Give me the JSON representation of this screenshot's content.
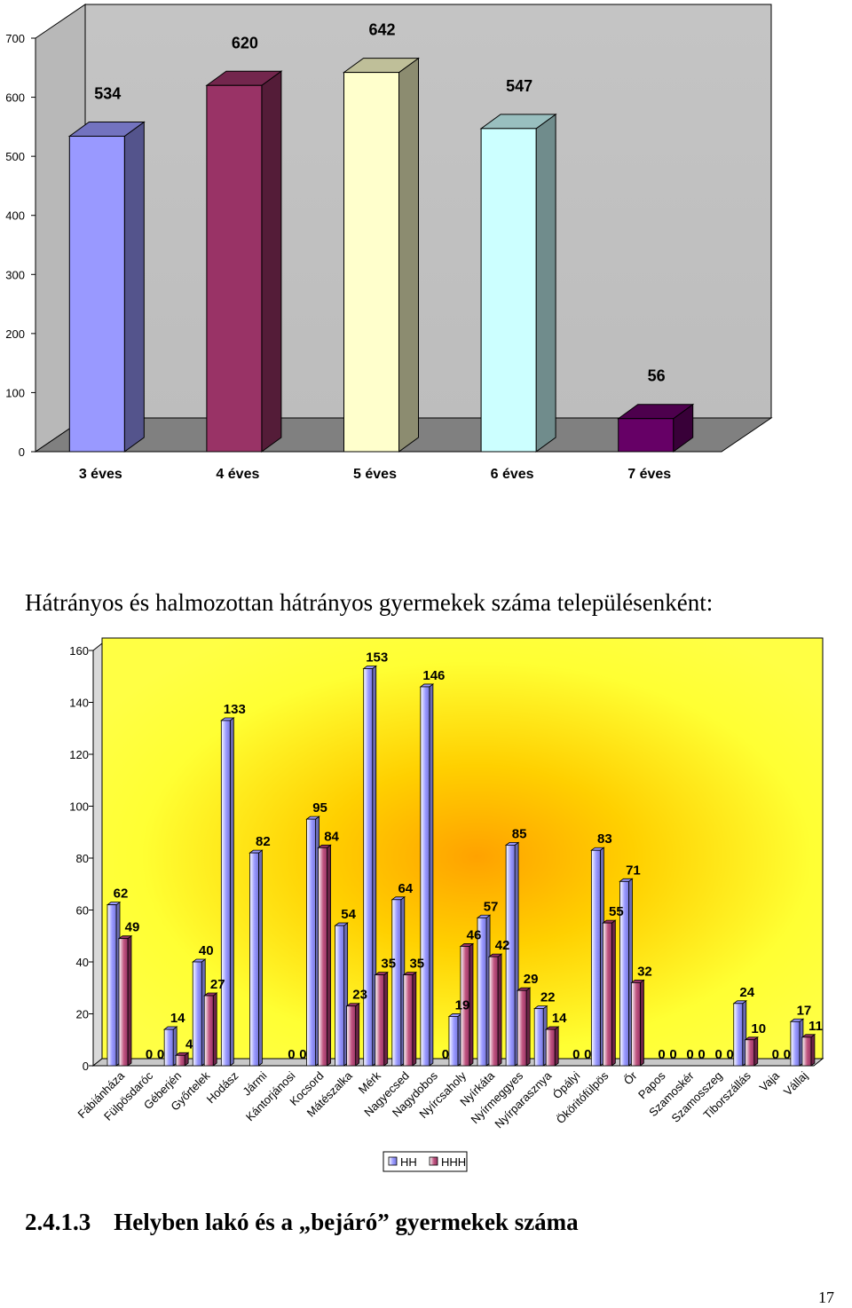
{
  "chart_data": [
    {
      "type": "bar",
      "categories": [
        "3 éves",
        "4 éves",
        "5 éves",
        "6 éves",
        "7 éves"
      ],
      "values": [
        534,
        620,
        642,
        547,
        56
      ],
      "colors": [
        "#9999ff",
        "#993366",
        "#ffffcc",
        "#ccffff",
        "#660066"
      ],
      "title": "",
      "ylim": [
        0,
        700
      ],
      "yticks": [
        "0",
        "100",
        "200",
        "300",
        "400",
        "500",
        "600",
        "700"
      ],
      "grid": false,
      "style": "3d"
    },
    {
      "type": "bar",
      "title": "Hátrányos és halmozottan hátrányos gyermekek száma településenként:",
      "categories": [
        "Fábiánháza",
        "Fülpösdaróc",
        "Géberjén",
        "Győrtelek",
        "Hodász",
        "Jármi",
        "Kántorjánosi",
        "Kocsord",
        "Mátészalka",
        "Mérk",
        "Nagyecsed",
        "Nagydobos",
        "Nyírcsaholy",
        "Nyírkáta",
        "Nyírmeggyes",
        "Nyírparasznya",
        "Ópályi",
        "Ököritófülpös",
        "Őr",
        "Papos",
        "Szamoskér",
        "Szamosszeg",
        "Tiborszállás",
        "Vaja",
        "Vállaj"
      ],
      "series": [
        {
          "name": "HH",
          "values": [
            62,
            0,
            14,
            40,
            133,
            82,
            0,
            95,
            54,
            153,
            64,
            146,
            19,
            57,
            85,
            22,
            0,
            83,
            71,
            0,
            0,
            0,
            24,
            0,
            17
          ],
          "color": "#9999ff"
        },
        {
          "name": "HHH",
          "values": [
            49,
            0,
            4,
            27,
            0,
            0,
            0,
            84,
            23,
            35,
            35,
            0,
            46,
            42,
            29,
            14,
            0,
            55,
            32,
            0,
            0,
            0,
            10,
            0,
            11
          ],
          "color": "#993366"
        }
      ],
      "data_labels": {
        "HH": [
          "62",
          "0",
          "14",
          "40",
          "133",
          "82",
          "0",
          "95",
          "54",
          "153",
          "64",
          "146",
          "19",
          "57",
          "85",
          "22",
          "0",
          "83",
          "71",
          "0",
          "0",
          "0",
          "24",
          "0",
          "17"
        ],
        "HHH": [
          "49",
          "0",
          "4",
          "27",
          "",
          "",
          "0",
          "84",
          "23",
          "35",
          "35",
          "0",
          "46",
          "42",
          "29",
          "14",
          "0",
          "55",
          "32",
          "0",
          "0",
          "0",
          "10",
          "0",
          "11"
        ]
      },
      "ylim": [
        0,
        160
      ],
      "yticks": [
        "0",
        "20",
        "40",
        "60",
        "80",
        "100",
        "120",
        "140",
        "160"
      ],
      "legend": "bottom",
      "background": "radial gradient orange-yellow"
    }
  ],
  "chart2_title": "Hátrányos és halmozottan hátrányos gyermekek száma településenként:",
  "section_heading": {
    "number": "2.4.1.3",
    "text": "Helyben lakó és a „bejáró” gyermekek száma"
  },
  "page_number": "17"
}
